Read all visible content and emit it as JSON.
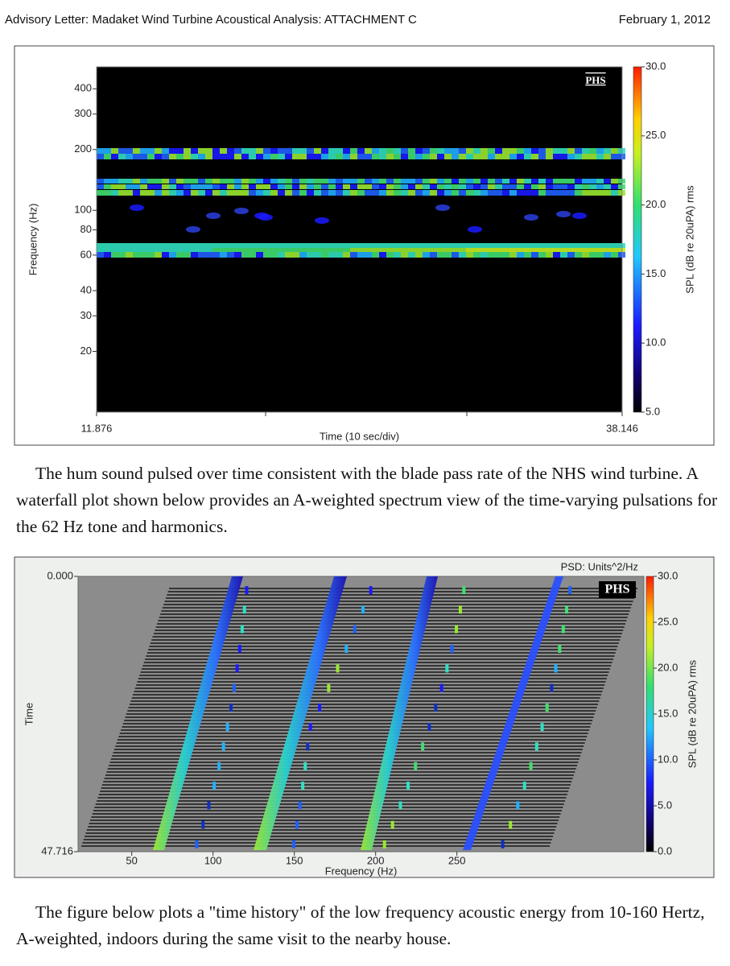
{
  "header": {
    "title": "Advisory Letter: Madaket Wind Turbine Acoustical Analysis: ATTACHMENT C",
    "date": "February 1, 2012"
  },
  "figure_1": {
    "type": "heatmap",
    "logo": "PHS",
    "x_label": "Time (10 sec/div)",
    "y_label": "Frequency (Hz)",
    "xlim": [
      11.876,
      38.146
    ],
    "xticks": [
      11.876,
      38.146
    ],
    "ylim": [
      10,
      514
    ],
    "log_y": true,
    "yticks": [
      20,
      30,
      40,
      60,
      80,
      100,
      200,
      300,
      400
    ],
    "colorbar_label": "SPL (dB re 20uPA) rms",
    "clim": [
      5,
      30
    ],
    "cticks": [
      {
        "value": 5,
        "label": "5.0"
      },
      {
        "value": 10,
        "label": "10.0"
      },
      {
        "value": 15,
        "label": "15.0"
      },
      {
        "value": 20,
        "label": "20.0"
      },
      {
        "value": 25,
        "label": "25.0"
      },
      {
        "value": 30,
        "label": "30.0"
      }
    ]
  },
  "paragraph_1": "The hum sound pulsed over time consistent with the blade pass rate of the NHS wind turbine.  A waterfall plot shown below provides an A-weighted spectrum view of the time-varying pulsations for the 62 Hz tone and harmonics.",
  "figure_2": {
    "type": "waterfall",
    "logo": "PHS",
    "psd_label": "PSD: Units^2/Hz",
    "x_label": "Frequency (Hz)",
    "y_label": "Time",
    "xlim": [
      17,
      365
    ],
    "xticks": [
      50,
      100,
      150,
      200,
      250
    ],
    "ylim": [
      47.716,
      0
    ],
    "log_y": false,
    "yticks": [
      {
        "value": 0,
        "label": "0.000"
      },
      {
        "value": 47.716,
        "label": "47.716"
      }
    ],
    "colorbar_label": "SPL (dB re 20uPA) rms",
    "clim": [
      0,
      30
    ],
    "cticks": [
      {
        "value": 0,
        "label": "0.0"
      },
      {
        "value": 5,
        "label": "5.0"
      },
      {
        "value": 10,
        "label": "10.0"
      },
      {
        "value": 15,
        "label": "15.0"
      },
      {
        "value": 20,
        "label": "20.0"
      },
      {
        "value": 25,
        "label": "25.0"
      },
      {
        "value": 30,
        "label": "30.0"
      }
    ]
  },
  "paragraph_2": "The figure below plots a \"time history\" of the low frequency acoustic energy from 10-160 Hertz, A-weighted, indoors during the same visit to the nearby house."
}
